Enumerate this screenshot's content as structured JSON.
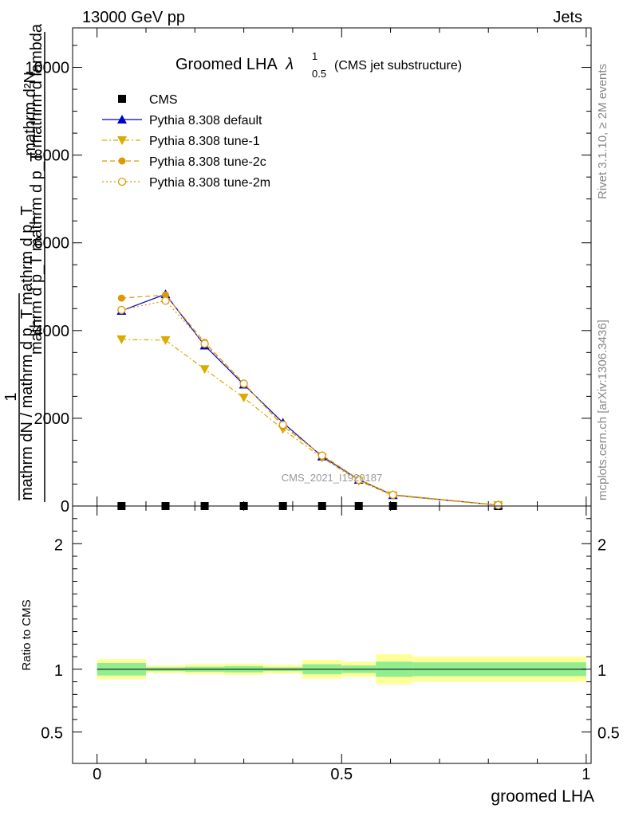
{
  "header": {
    "energy_label": "13000 GeV pp",
    "category_label": "Jets"
  },
  "side_labels": {
    "rivet": "Rivet 3.1.10, ≥ 2M events",
    "mcplots": "mcplots.cern.ch [arXiv:1306.3436]"
  },
  "chart_data": [
    {
      "type": "line",
      "title_main": "Groomed LHA",
      "title_lambda": "λ",
      "title_sup": "1",
      "title_sub": "0.5",
      "title_paren": "(CMS jet substructure)",
      "watermark": "CMS_2021_I1920187",
      "ylabel_numerator": "mathrm d²N",
      "ylabel_inner": "mathrm d p_T mathrm d p_T mathrm d lambda",
      "ylabel_one": "1",
      "ylabel_denominator": "mathrm dN / mathrm d p_T mathrm d p_T",
      "xlim": [
        -0.05,
        1.01
      ],
      "ylim": [
        0,
        10900
      ],
      "yticks": [
        0,
        2000,
        4000,
        6000,
        8000,
        10000
      ],
      "ytick_labels": [
        "0",
        "2000",
        "4000",
        "6000",
        "8000",
        "10000"
      ],
      "x": [
        0.05,
        0.14,
        0.22,
        0.3,
        0.38,
        0.46,
        0.535,
        0.605,
        0.82
      ],
      "legend_position": "top-left",
      "series": [
        {
          "name": "CMS",
          "color": "#000000",
          "marker": "square",
          "line": "none",
          "values": [
            0,
            0,
            0,
            0,
            0,
            0,
            0,
            0,
            0
          ]
        },
        {
          "name": "Pythia 8.308 default",
          "color": "#0000cc",
          "marker": "triangle-up",
          "line": "solid",
          "values": [
            4450,
            4830,
            3660,
            2770,
            1900,
            1130,
            600,
            250,
            20
          ]
        },
        {
          "name": "Pythia 8.308 tune-1",
          "color": "#ddaa00",
          "marker": "triangle-down",
          "line": "dashdot",
          "values": [
            3800,
            3780,
            3120,
            2470,
            1750,
            1100,
            570,
            240,
            20
          ]
        },
        {
          "name": "Pythia 8.308 tune-2c",
          "color": "#dd9900",
          "marker": "circle",
          "line": "dashed",
          "values": [
            4740,
            4810,
            3730,
            2800,
            1820,
            1160,
            610,
            260,
            22
          ]
        },
        {
          "name": "Pythia 8.308 tune-2m",
          "color": "#dd9900",
          "marker": "circle-open",
          "line": "dotted",
          "values": [
            4470,
            4680,
            3700,
            2790,
            1850,
            1150,
            600,
            255,
            21
          ]
        }
      ]
    },
    {
      "type": "area",
      "ylabel": "Ratio to CMS",
      "xlabel": "groomed LHA",
      "xlim": [
        -0.05,
        1.01
      ],
      "ylim": [
        0.25,
        2.3
      ],
      "yticks": [
        0.5,
        1,
        2
      ],
      "ytick_labels": [
        "0.5",
        "1",
        "2"
      ],
      "xticks": [
        0,
        0.5,
        1
      ],
      "xtick_labels": [
        "0",
        "0.5",
        "1"
      ],
      "reference_line": 1,
      "bins": [
        {
          "xlo": 0.0,
          "xhi": 0.1,
          "stat": 0.05,
          "total": 0.08
        },
        {
          "xlo": 0.1,
          "xhi": 0.18,
          "stat": 0.015,
          "total": 0.03
        },
        {
          "xlo": 0.18,
          "xhi": 0.26,
          "stat": 0.02,
          "total": 0.04
        },
        {
          "xlo": 0.26,
          "xhi": 0.34,
          "stat": 0.025,
          "total": 0.045
        },
        {
          "xlo": 0.34,
          "xhi": 0.42,
          "stat": 0.015,
          "total": 0.035
        },
        {
          "xlo": 0.42,
          "xhi": 0.5,
          "stat": 0.04,
          "total": 0.075
        },
        {
          "xlo": 0.5,
          "xhi": 0.57,
          "stat": 0.03,
          "total": 0.06
        },
        {
          "xlo": 0.57,
          "xhi": 0.645,
          "stat": 0.06,
          "total": 0.12
        },
        {
          "xlo": 0.645,
          "xhi": 1.0,
          "stat": 0.055,
          "total": 0.1
        }
      ],
      "band_colors": {
        "stat": "#90ee90",
        "total": "#ffff99"
      }
    }
  ]
}
